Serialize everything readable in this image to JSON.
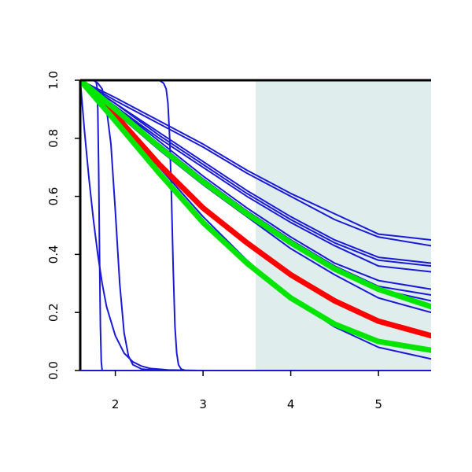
{
  "chart_data": {
    "type": "line",
    "title": "",
    "xlabel": "",
    "ylabel": "",
    "xlim": [
      1.6,
      5.6
    ],
    "ylim": [
      0.0,
      1.0
    ],
    "x_ticks": [
      2,
      3,
      4,
      5
    ],
    "x_tick_labels": [
      "2",
      "3",
      "4",
      "5"
    ],
    "y_ticks": [
      0.0,
      0.2,
      0.4,
      0.6,
      0.8,
      1.0
    ],
    "y_tick_labels": [
      "0.0",
      "0.2",
      "0.4",
      "0.6",
      "0.8",
      "1.0"
    ],
    "grid": false,
    "legend": "none",
    "shaded_region": {
      "x_start": 3.6,
      "x_end": 5.6,
      "color": "#e0eded"
    },
    "colors": {
      "blue": "#1a1ad6",
      "red": "#ff0000",
      "green": "#00e600",
      "axis": "#000000"
    },
    "series": [
      {
        "color": "#1a1ad6",
        "weight": "thin",
        "x": [
          1.6,
          2.0,
          2.5,
          3.0,
          3.5,
          4.0,
          4.5,
          5.0,
          5.6
        ],
        "y": [
          1.0,
          0.94,
          0.86,
          0.78,
          0.69,
          0.61,
          0.54,
          0.47,
          0.45
        ]
      },
      {
        "color": "#1a1ad6",
        "weight": "thin",
        "x": [
          1.6,
          2.0,
          2.5,
          3.0,
          3.5,
          4.0,
          4.5,
          5.0,
          5.6
        ],
        "y": [
          1.0,
          0.93,
          0.85,
          0.77,
          0.68,
          0.6,
          0.52,
          0.46,
          0.43
        ]
      },
      {
        "color": "#1a1ad6",
        "weight": "thin",
        "x": [
          1.6,
          2.0,
          2.5,
          3.0,
          3.5,
          4.0,
          4.5,
          5.0,
          5.6
        ],
        "y": [
          1.0,
          0.92,
          0.82,
          0.72,
          0.62,
          0.53,
          0.45,
          0.39,
          0.37
        ]
      },
      {
        "color": "#1a1ad6",
        "weight": "thin",
        "x": [
          1.6,
          2.0,
          2.5,
          3.0,
          3.5,
          4.0,
          4.5,
          5.0,
          5.6
        ],
        "y": [
          1.0,
          0.92,
          0.81,
          0.71,
          0.61,
          0.52,
          0.44,
          0.38,
          0.36
        ]
      },
      {
        "color": "#1a1ad6",
        "weight": "thin",
        "x": [
          1.6,
          2.0,
          2.5,
          3.0,
          3.5,
          4.0,
          4.5,
          5.0,
          5.6
        ],
        "y": [
          1.0,
          0.91,
          0.8,
          0.7,
          0.6,
          0.51,
          0.43,
          0.36,
          0.34
        ]
      },
      {
        "color": "#1a1ad6",
        "weight": "thin",
        "x": [
          1.6,
          2.0,
          2.5,
          3.0,
          3.5,
          4.0,
          4.5,
          5.0,
          5.6
        ],
        "y": [
          1.0,
          0.91,
          0.79,
          0.67,
          0.56,
          0.46,
          0.37,
          0.31,
          0.28
        ]
      },
      {
        "color": "#1a1ad6",
        "weight": "thin",
        "x": [
          1.6,
          2.0,
          2.5,
          3.0,
          3.5,
          4.0,
          4.5,
          5.0,
          5.6
        ],
        "y": [
          1.0,
          0.9,
          0.78,
          0.66,
          0.55,
          0.45,
          0.36,
          0.29,
          0.26
        ]
      },
      {
        "color": "#1a1ad6",
        "weight": "thin",
        "x": [
          1.6,
          2.0,
          2.5,
          3.0,
          3.5,
          4.0,
          4.5,
          5.0,
          5.6
        ],
        "y": [
          1.0,
          0.9,
          0.77,
          0.65,
          0.54,
          0.44,
          0.35,
          0.28,
          0.24
        ]
      },
      {
        "color": "#1a1ad6",
        "weight": "thin",
        "x": [
          1.6,
          2.0,
          2.5,
          3.0,
          3.5,
          4.0,
          4.5,
          5.0,
          5.6
        ],
        "y": [
          1.0,
          0.89,
          0.76,
          0.64,
          0.53,
          0.42,
          0.33,
          0.25,
          0.2
        ]
      },
      {
        "color": "#1a1ad6",
        "weight": "thin",
        "x": [
          1.6,
          2.0,
          2.5,
          3.0,
          3.5,
          4.0,
          4.5,
          5.0,
          5.6
        ],
        "y": [
          1.0,
          0.87,
          0.7,
          0.53,
          0.38,
          0.25,
          0.15,
          0.08,
          0.04
        ]
      },
      {
        "color": "#1a1ad6",
        "weight": "thin",
        "x": [
          1.6,
          1.65,
          1.7,
          1.75,
          1.8,
          1.85,
          1.9,
          2.0,
          2.1,
          2.2,
          2.3,
          2.4,
          2.6,
          3.0,
          5.6
        ],
        "y": [
          1.0,
          0.82,
          0.66,
          0.52,
          0.4,
          0.3,
          0.22,
          0.12,
          0.06,
          0.03,
          0.015,
          0.007,
          0.002,
          0.0,
          0.0
        ]
      },
      {
        "color": "#1a1ad6",
        "weight": "thin",
        "x": [
          1.6,
          1.75,
          1.78,
          1.79,
          1.8,
          1.81,
          1.82,
          1.83,
          1.84,
          1.85,
          5.6
        ],
        "y": [
          1.0,
          1.0,
          0.995,
          0.98,
          0.9,
          0.7,
          0.4,
          0.15,
          0.03,
          0.0,
          0.0
        ]
      },
      {
        "color": "#1a1ad6",
        "weight": "thin",
        "x": [
          1.6,
          1.75,
          1.8,
          1.85,
          1.9,
          1.95,
          2.0,
          2.05,
          2.1,
          2.15,
          2.2,
          2.3,
          2.5,
          5.6
        ],
        "y": [
          1.0,
          1.0,
          0.99,
          0.97,
          0.9,
          0.78,
          0.55,
          0.3,
          0.13,
          0.05,
          0.02,
          0.005,
          0.0,
          0.0
        ]
      },
      {
        "color": "#1a1ad6",
        "weight": "thin",
        "x": [
          1.6,
          2.5,
          2.55,
          2.58,
          2.6,
          2.62,
          2.64,
          2.66,
          2.68,
          2.7,
          2.72,
          2.75,
          2.8,
          5.6
        ],
        "y": [
          1.0,
          1.0,
          0.99,
          0.97,
          0.92,
          0.8,
          0.6,
          0.35,
          0.15,
          0.06,
          0.02,
          0.005,
          0.0,
          0.0
        ]
      },
      {
        "color": "#ff0000",
        "weight": "thick",
        "x": [
          1.6,
          2.0,
          2.5,
          3.0,
          3.5,
          4.0,
          4.5,
          5.0,
          5.6
        ],
        "y": [
          1.0,
          0.88,
          0.71,
          0.56,
          0.44,
          0.33,
          0.24,
          0.17,
          0.12
        ]
      },
      {
        "color": "#00e600",
        "weight": "thick",
        "x": [
          1.6,
          2.0,
          2.5,
          3.0,
          3.5,
          4.0,
          4.5,
          5.0,
          5.6
        ],
        "y": [
          1.0,
          0.9,
          0.77,
          0.65,
          0.54,
          0.44,
          0.35,
          0.28,
          0.22
        ]
      },
      {
        "color": "#00e600",
        "weight": "thick",
        "x": [
          1.6,
          2.0,
          2.5,
          3.0,
          3.5,
          4.0,
          4.5,
          5.0,
          5.6
        ],
        "y": [
          1.0,
          0.86,
          0.68,
          0.51,
          0.37,
          0.25,
          0.16,
          0.1,
          0.07
        ]
      }
    ]
  }
}
